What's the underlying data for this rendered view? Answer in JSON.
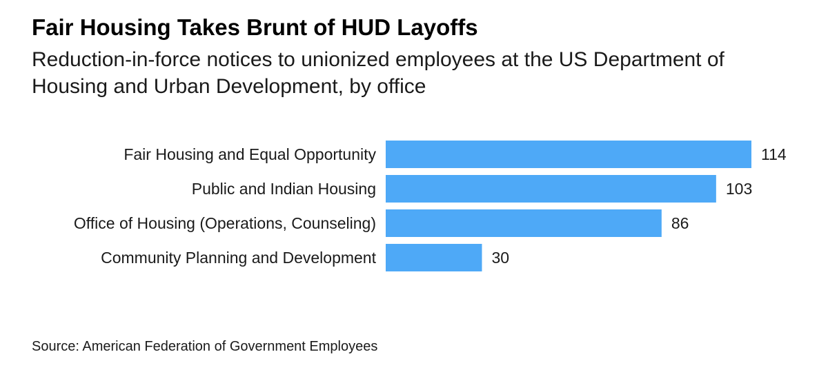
{
  "title": "Fair Housing Takes Brunt of HUD Layoffs",
  "subtitle": "Reduction-in-force notices to unionized employees at the US Department of Housing and Urban Development, by office",
  "source": "Source: American Federation of Government Employees",
  "colors": {
    "bar": "#4ea9f7",
    "text": "#1a1a1a"
  },
  "chart_data": {
    "type": "bar",
    "orientation": "horizontal",
    "categories": [
      "Fair Housing and Equal Opportunity",
      "Public and Indian Housing",
      "Office of Housing (Operations, Counseling)",
      "Community Planning and Development"
    ],
    "values": [
      114,
      103,
      86,
      30
    ],
    "title": "Fair Housing Takes Brunt of HUD Layoffs",
    "subtitle": "Reduction-in-force notices to unionized employees at the US Department of Housing and Urban Development, by office",
    "xlabel": "",
    "ylabel": "",
    "xlim": [
      0,
      114
    ],
    "grid": false,
    "legend": "none",
    "data_labels": true
  }
}
